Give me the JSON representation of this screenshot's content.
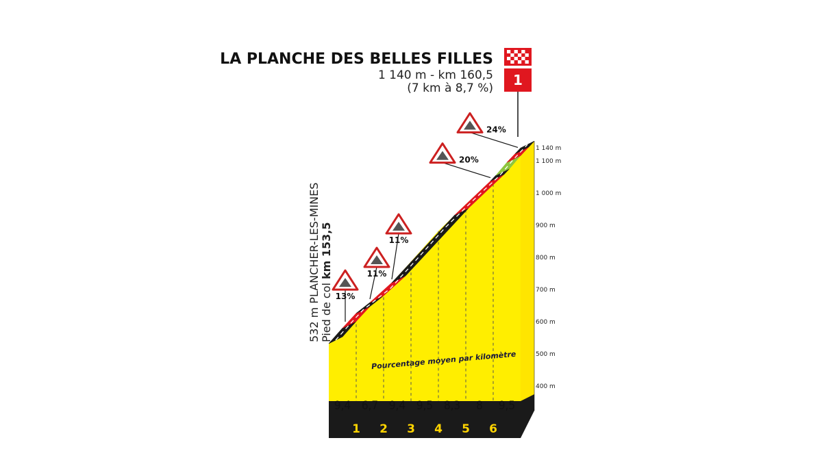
{
  "header": {
    "title": "LA PLANCHE DES BELLES FILLES",
    "altitude_km": "1 140 m - km 160,5",
    "climb_stats": "(7 km à 8,7 %)",
    "category": "1"
  },
  "start": {
    "prefix": "532 m PLANCHER-LES-MINES",
    "label": "Pied de col ",
    "km": "km 153,5"
  },
  "note": "Pourcentage moyen par kilomètre",
  "colors": {
    "yellow": "#ffee00",
    "black": "#1a1a1a",
    "red": "#e0171f",
    "green": "#8ec63f",
    "ramp_sign": "#cc2020"
  },
  "chart_data": {
    "type": "area",
    "title": "LA PLANCHE DES BELLES FILLES",
    "x_unit": "km",
    "y_ticks": [
      {
        "value": 400,
        "label": "400 m"
      },
      {
        "value": 500,
        "label": "500 m"
      },
      {
        "value": 600,
        "label": "600 m"
      },
      {
        "value": 700,
        "label": "700 m"
      },
      {
        "value": 800,
        "label": "800 m"
      },
      {
        "value": 900,
        "label": "900 m"
      },
      {
        "value": 1000,
        "label": "1 000 m"
      },
      {
        "value": 1100,
        "label": "1 100 m"
      },
      {
        "value": 1140,
        "label": "1 140 m"
      }
    ],
    "x_ticks": [
      "1",
      "2",
      "3",
      "4",
      "5",
      "6"
    ],
    "km_gradients": [
      "9,4",
      "6,7",
      "9,4",
      "9,5",
      "8,3",
      "8",
      "9,5"
    ],
    "profile_points": [
      {
        "km": 0,
        "alt": 532
      },
      {
        "km": 0.5,
        "alt": 580
      },
      {
        "km": 1,
        "alt": 626
      },
      {
        "km": 2,
        "alt": 693
      },
      {
        "km": 3,
        "alt": 787
      },
      {
        "km": 4,
        "alt": 882
      },
      {
        "km": 5,
        "alt": 965
      },
      {
        "km": 6,
        "alt": 1045
      },
      {
        "km": 6.5,
        "alt": 1095
      },
      {
        "km": 7,
        "alt": 1140
      }
    ],
    "segments": [
      {
        "from": 0,
        "to": 0.5,
        "color": "black"
      },
      {
        "from": 0.5,
        "to": 1.0,
        "color": "red"
      },
      {
        "from": 1.0,
        "to": 1.5,
        "color": "black"
      },
      {
        "from": 1.5,
        "to": 2.3,
        "color": "red"
      },
      {
        "from": 2.3,
        "to": 4.6,
        "color": "black"
      },
      {
        "from": 4.6,
        "to": 5.9,
        "color": "red"
      },
      {
        "from": 5.9,
        "to": 6.1,
        "color": "black"
      },
      {
        "from": 6.1,
        "to": 6.5,
        "color": "green"
      },
      {
        "from": 6.5,
        "to": 6.8,
        "color": "red"
      },
      {
        "from": 6.8,
        "to": 7.0,
        "color": "black"
      }
    ],
    "ramps": [
      {
        "label": "13%",
        "km": 0.6
      },
      {
        "label": "11%",
        "km": 1.5
      },
      {
        "label": "11%",
        "km": 2.3
      },
      {
        "label": "20%",
        "km": 5.9
      },
      {
        "label": "24%",
        "km": 6.9
      }
    ]
  }
}
